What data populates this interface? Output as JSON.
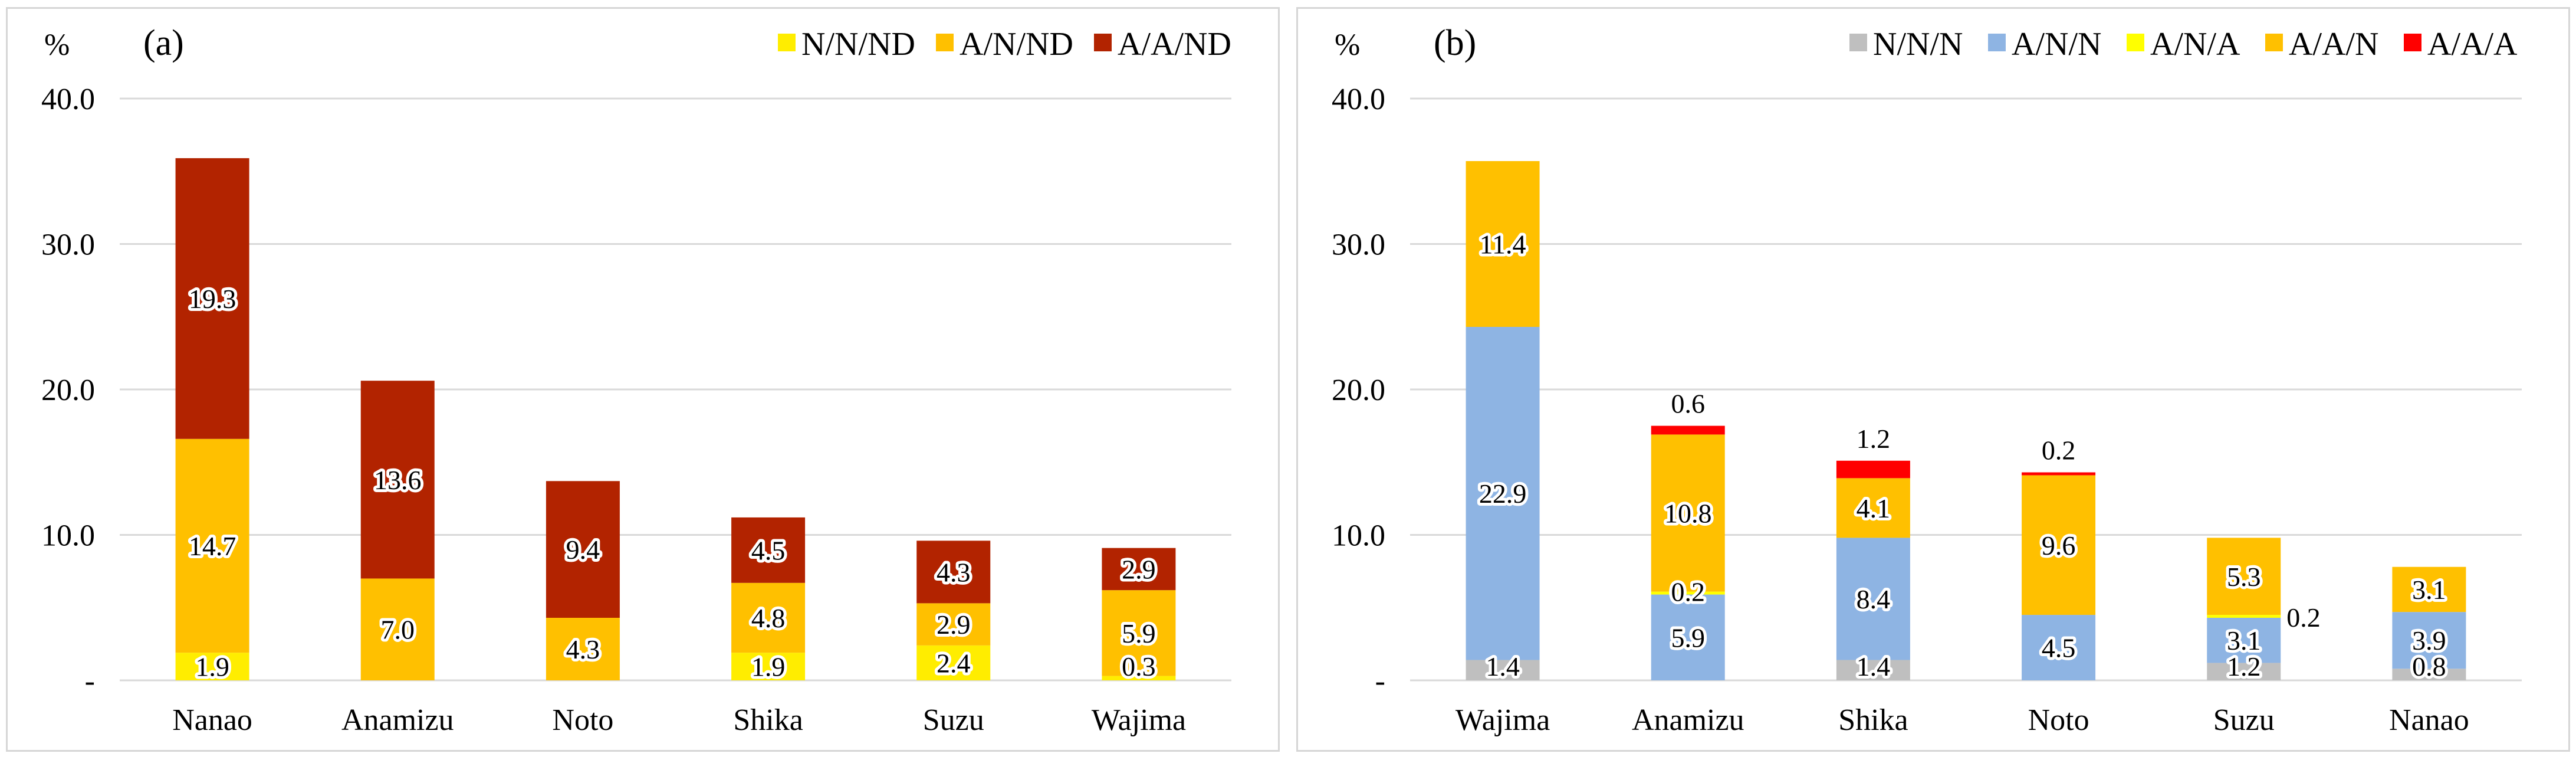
{
  "colors": {
    "N/N/ND": "#ffed00",
    "A/N/ND": "#ffc000",
    "A/A/ND": "#b22300",
    "N/N/N": "#bfbfbf",
    "A/N/N": "#8eb4e3",
    "A/N/A": "#ffff00",
    "A/A/N": "#ffc000",
    "A/A/A": "#ff0000"
  },
  "chart_data": [
    {
      "type": "bar",
      "stacked": true,
      "panel_label": "(a)",
      "unit_label": "%",
      "ylim": [
        0,
        40
      ],
      "yticks": [
        "-",
        "10.0",
        "20.0",
        "30.0",
        "40.0"
      ],
      "grid": true,
      "legend_position": "top-right",
      "categories": [
        "Nanao",
        "Anamizu",
        "Noto",
        "Shika",
        "Suzu",
        "Wajima"
      ],
      "series": [
        {
          "name": "N/N/ND",
          "values": [
            1.9,
            0,
            0,
            1.9,
            2.4,
            0.3
          ],
          "labels": [
            "1.9",
            "",
            "",
            "1.9",
            "2.4",
            "0.3"
          ]
        },
        {
          "name": "A/N/ND",
          "values": [
            14.7,
            7.0,
            4.3,
            4.8,
            2.9,
            5.9
          ],
          "labels": [
            "14.7",
            "7.0",
            "4.3",
            "4.8",
            "2.9",
            "5.9"
          ]
        },
        {
          "name": "A/A/ND",
          "values": [
            19.3,
            13.6,
            9.4,
            4.5,
            4.3,
            2.9
          ],
          "labels": [
            "19.3",
            "13.6",
            "9.4",
            "4.5",
            "4.3",
            "2.9"
          ]
        }
      ]
    },
    {
      "type": "bar",
      "stacked": true,
      "panel_label": "(b)",
      "unit_label": "%",
      "ylim": [
        0,
        40
      ],
      "yticks": [
        "-",
        "10.0",
        "20.0",
        "30.0",
        "40.0"
      ],
      "grid": true,
      "legend_position": "top-right",
      "categories": [
        "Wajima",
        "Anamizu",
        "Shika",
        "Noto",
        "Suzu",
        "Nanao"
      ],
      "series": [
        {
          "name": "N/N/N",
          "values": [
            1.4,
            0,
            1.4,
            0,
            1.2,
            0.8
          ],
          "labels": [
            "1.4",
            "",
            "1.4",
            "",
            "1.2",
            "0.8"
          ]
        },
        {
          "name": "A/N/N",
          "values": [
            22.9,
            5.9,
            8.4,
            4.5,
            3.1,
            3.9
          ],
          "labels": [
            "22.9",
            "5.9",
            "8.4",
            "4.5",
            "3.1",
            "3.9"
          ]
        },
        {
          "name": "A/N/A",
          "values": [
            0,
            0.2,
            0,
            0,
            0.2,
            0
          ],
          "labels": [
            "",
            "0.2",
            "",
            "",
            "0.2",
            ""
          ]
        },
        {
          "name": "A/A/N",
          "values": [
            11.4,
            10.8,
            4.1,
            9.6,
            5.3,
            3.1
          ],
          "labels": [
            "11.4",
            "10.8",
            "4.1",
            "9.6",
            "5.3",
            "3.1"
          ]
        },
        {
          "name": "A/A/A",
          "values": [
            0,
            0.6,
            1.2,
            0.2,
            0,
            0
          ],
          "labels": [
            "",
            "0.6",
            "1.2",
            "0.2",
            "",
            ""
          ]
        }
      ]
    }
  ]
}
